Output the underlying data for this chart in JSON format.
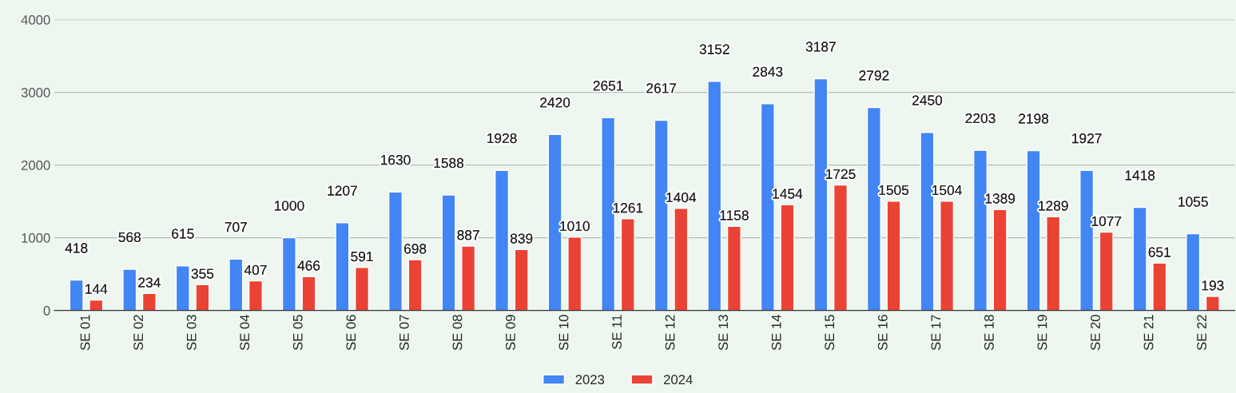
{
  "chart_data": {
    "type": "bar",
    "categories": [
      "SE 01",
      "SE 02",
      "SE 03",
      "SE 04",
      "SE 05",
      "SE 06",
      "SE 07",
      "SE 08",
      "SE 09",
      "SE 10",
      "SE 11",
      "SE 12",
      "SE 13",
      "SE 14",
      "SE 15",
      "SE 16",
      "SE 17",
      "SE 18",
      "SE 19",
      "SE 20",
      "SE 21",
      "SE 22"
    ],
    "series": [
      {
        "name": "2023",
        "color": "#4285f4",
        "values": [
          418,
          568,
          615,
          707,
          1000,
          1207,
          1630,
          1588,
          1928,
          2420,
          2651,
          2617,
          3152,
          2843,
          3187,
          2792,
          2450,
          2203,
          2198,
          1927,
          1418,
          1055
        ]
      },
      {
        "name": "2024",
        "color": "#ea4335",
        "values": [
          144,
          234,
          355,
          407,
          466,
          591,
          698,
          887,
          839,
          1010,
          1261,
          1404,
          1158,
          1454,
          1725,
          1505,
          1504,
          1389,
          1289,
          1077,
          651,
          193
        ]
      }
    ],
    "ylim": [
      0,
      4000
    ],
    "yticks": [
      0,
      1000,
      2000,
      3000,
      4000
    ],
    "grid": "y",
    "legend": "bottom",
    "data_labels": true
  }
}
